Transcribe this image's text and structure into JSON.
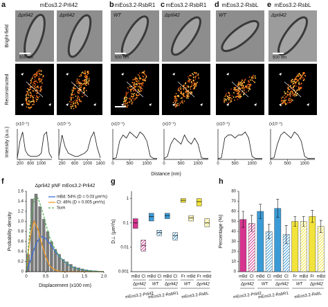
{
  "figure": {
    "panel_letters": [
      "a",
      "b",
      "c",
      "d",
      "e",
      "f",
      "g",
      "h"
    ],
    "headers": [
      "mEos3.2-Prli42",
      "mEos3.2-RsbR1",
      "mEos3.2-RsbR1",
      "mEos3.2-RsbL",
      "mEos3.2-RsbL"
    ],
    "row_labels": [
      "Bright-field",
      "Reconstructed"
    ],
    "strain_labels": [
      "Δprli42",
      "Δprli42",
      "WT",
      "Δprli42",
      "WT",
      "Δprli42"
    ],
    "scale_labels": [
      "500 nm",
      "500 nm",
      "500 nm",
      "500 nm"
    ],
    "profile_ylabel": "Intensity (a.u.)",
    "profile_xlabel": "Distance (nm)"
  },
  "chart_data": [
    {
      "type": "line",
      "scale_label": "(x10⁻¹)",
      "x": [
        100,
        200,
        300,
        400,
        500,
        600,
        700,
        800,
        900,
        1000,
        1100,
        1200,
        1300,
        1400
      ],
      "xlim": [
        100,
        1400
      ],
      "xticks": [
        200,
        600,
        1000
      ],
      "ylim": [
        0,
        10
      ],
      "series": [
        {
          "color": "#111111",
          "values": [
            0.5,
            6,
            9,
            3,
            1.5,
            1,
            1,
            1,
            1.2,
            2,
            8,
            9,
            2,
            0.5
          ]
        }
      ]
    },
    {
      "type": "line",
      "scale_label": "(x10⁻¹)",
      "x": [
        100,
        200,
        300,
        400,
        500,
        600,
        700,
        800,
        900,
        1000,
        1100,
        1200,
        1300,
        1400
      ],
      "xlim": [
        100,
        1400
      ],
      "xticks": [
        200,
        600,
        1000,
        1400
      ],
      "ylim": [
        0,
        10
      ],
      "series": [
        {
          "color": "#111111",
          "values": [
            1,
            8,
            4,
            2,
            1.5,
            1,
            1,
            1.5,
            2,
            3,
            7,
            9,
            4,
            0.5
          ]
        }
      ]
    },
    {
      "type": "line",
      "scale_label": "(x10⁻¹)",
      "x": [
        0,
        100,
        200,
        300,
        400,
        500,
        600,
        700,
        800,
        900,
        1000,
        1100,
        1200,
        1300
      ],
      "xlim": [
        0,
        1300
      ],
      "xticks": [
        0,
        500,
        1000
      ],
      "ylim": [
        0,
        10
      ],
      "series": [
        {
          "color": "#111111",
          "values": [
            0.3,
            0.5,
            6,
            8,
            7,
            9,
            8,
            7,
            9,
            8,
            6,
            1,
            0.3,
            0.3
          ]
        }
      ]
    },
    {
      "type": "line",
      "scale_label": "(x10⁻¹)",
      "x": [
        0,
        100,
        200,
        300,
        400,
        500,
        600,
        700,
        800,
        900,
        1000,
        1100,
        1200,
        1300
      ],
      "xlim": [
        0,
        1300
      ],
      "xticks": [
        0,
        500,
        1000
      ],
      "ylim": [
        0,
        10
      ],
      "series": [
        {
          "color": "#111111",
          "values": [
            0.3,
            1,
            5,
            7,
            6,
            5,
            8,
            6,
            5,
            7,
            5,
            0.5,
            0.3,
            0.3
          ]
        }
      ]
    },
    {
      "type": "line",
      "scale_label": "(x10⁻¹)",
      "x": [
        0,
        100,
        200,
        300,
        400,
        500,
        600,
        700,
        800,
        900,
        1000,
        1100,
        1200,
        1300
      ],
      "xlim": [
        0,
        1300
      ],
      "xticks": [
        0,
        500,
        1000
      ],
      "ylim": [
        0,
        10
      ],
      "series": [
        {
          "color": "#111111",
          "values": [
            0.3,
            0.5,
            7,
            8,
            8,
            7,
            8,
            8,
            9,
            7,
            1,
            0.3,
            0.3,
            0.3
          ]
        }
      ]
    },
    {
      "type": "line",
      "scale_label": "(x10⁻¹)",
      "x": [
        0,
        100,
        200,
        300,
        400,
        500,
        600,
        700,
        800,
        900,
        1000,
        1100,
        1200,
        1300
      ],
      "xlim": [
        0,
        1300
      ],
      "xticks": [
        0,
        500,
        1000
      ],
      "ylim": [
        0,
        10
      ],
      "series": [
        {
          "color": "#111111",
          "values": [
            0.3,
            0.5,
            5,
            8,
            9,
            8,
            7,
            9,
            8,
            6,
            1,
            0.3,
            0.3,
            0.3
          ]
        }
      ]
    },
    {
      "type": "histogram",
      "title": "Δprli42 pNF mEos3.2-Prli42",
      "xlabel": "Displacement (x100 nm)",
      "ylabel": "Probability density",
      "xlim": [
        0,
        2
      ],
      "xticks": [
        0,
        0.5,
        {
          "value": 1,
          "label": "1.0"
        },
        1.5,
        {
          "value": 2,
          "label": "2.0"
        }
      ],
      "ylim": [
        0,
        1.6
      ],
      "yticks": [
        0,
        0.2,
        0.4,
        0.6,
        0.8,
        {
          "value": 1,
          "label": "1.0"
        },
        1.2,
        1.4,
        1.6
      ],
      "histogram": {
        "color": "#7a7a7a",
        "bins": [
          0,
          0.1,
          0.2,
          0.3,
          0.4,
          0.5,
          0.6,
          0.7,
          0.8,
          0.9,
          1,
          1.1,
          1.2,
          1.3,
          1.4,
          1.5,
          1.6,
          1.7,
          1.8,
          1.9
        ],
        "values": [
          0.35,
          1.45,
          1.55,
          1.3,
          1.05,
          0.8,
          0.6,
          0.45,
          0.35,
          0.25,
          0.2,
          0.15,
          0.1,
          0.08,
          0.06,
          0.04,
          0.03,
          0.02,
          0.01
        ]
      },
      "x": [
        0,
        0.1,
        0.2,
        0.3,
        0.4,
        0.5,
        0.6,
        0.7,
        0.8,
        0.9,
        1,
        1.1,
        1.2,
        1.3,
        1.4,
        1.5,
        1.6,
        1.7,
        1.8,
        1.9,
        2
      ],
      "series": [
        {
          "name": "mBd: 54% (D = 0.03 μm²/s)",
          "color": "#3a6fd8",
          "values": [
            0,
            0.2,
            0.45,
            0.62,
            0.7,
            0.66,
            0.57,
            0.46,
            0.35,
            0.26,
            0.19,
            0.13,
            0.09,
            0.06,
            0.04,
            0.03,
            0.02,
            0.01,
            0.01,
            0,
            0
          ]
        },
        {
          "name": "Cl: 46% (D = 0.005 μm²/s)",
          "color": "#f39a1f",
          "values": [
            0,
            0.7,
            1,
            0.85,
            0.55,
            0.3,
            0.12,
            0.05,
            0.02,
            0,
            0,
            0,
            0,
            0,
            0,
            0,
            0,
            0,
            0,
            0,
            0
          ]
        },
        {
          "name": "Sum",
          "color": "#4caf50",
          "dashed": true,
          "values": [
            0,
            0.9,
            1.45,
            1.47,
            1.25,
            0.96,
            0.69,
            0.51,
            0.37,
            0.26,
            0.19,
            0.13,
            0.09,
            0.06,
            0.04,
            0.03,
            0.02,
            0.01,
            0.01,
            0,
            0
          ]
        }
      ]
    },
    {
      "type": "box",
      "ylabel": "D⊥ (μm²/s)",
      "log": true,
      "ylim": [
        0.001,
        2
      ],
      "yticks": [
        0.001,
        0.01,
        0.1,
        1
      ],
      "categories": [
        "mBd",
        "Cl",
        "mBd",
        "Cl",
        "mBd",
        "Cl",
        "Fr",
        "mBd",
        "Fr",
        "mBd"
      ],
      "group_labels": [
        "Δprli42",
        "WT",
        "Δprli42",
        "WT",
        "Δprli42"
      ],
      "strain_labels": [
        "mEos3.2-Prli42",
        "mEos3.2-RsbR1",
        "mEos3.2-RsbL"
      ],
      "colors": [
        "#d6338f",
        "#d6338f",
        "#3b9bd6",
        "#3b9bd6",
        "#3b9bd6",
        "#3b9bd6",
        "#f2e33b",
        "#f2e33b",
        "#f2e33b",
        "#f2e33b"
      ],
      "q1": [
        0.06,
        0.007,
        0.12,
        0.03,
        0.15,
        0.02,
        0.7,
        0.12,
        0.5,
        0.07
      ],
      "median": [
        0.1,
        0.012,
        0.18,
        0.04,
        0.2,
        0.03,
        0.85,
        0.16,
        0.75,
        0.1
      ],
      "q3": [
        0.15,
        0.02,
        0.25,
        0.05,
        0.25,
        0.04,
        1,
        0.2,
        1,
        0.15
      ]
    },
    {
      "type": "bar",
      "ylabel": "Percentage (%)",
      "ylim": [
        0,
        80
      ],
      "yticks": [
        0,
        10,
        20,
        30,
        40,
        50,
        60,
        70,
        80
      ],
      "categories": [
        "mBd",
        "Cl",
        "mBd",
        "Cl",
        "mBd",
        "Cl",
        "Fr",
        "mBd",
        "Fr",
        "mBd"
      ],
      "group_labels": [
        "Δprli42",
        "WT",
        "Δprli42",
        "WT",
        "Δprli42"
      ],
      "strain_labels": [
        "mEos3.2-Prli42",
        "mEos3.2-RsbR1",
        "mEos3.2-RsbL"
      ],
      "colors": [
        "#d6338f",
        "#d6338f",
        "#3b9bd6",
        "#3b9bd6",
        "#3b9bd6",
        "#3b9bd6",
        "#f2e33b",
        "#f2e33b",
        "#f2e33b",
        "#f2e33b"
      ],
      "values": [
        52,
        48,
        60,
        40,
        63,
        37,
        50,
        50,
        55,
        45
      ],
      "errors": [
        8,
        8,
        7,
        7,
        9,
        9,
        5,
        5,
        6,
        6
      ]
    }
  ]
}
